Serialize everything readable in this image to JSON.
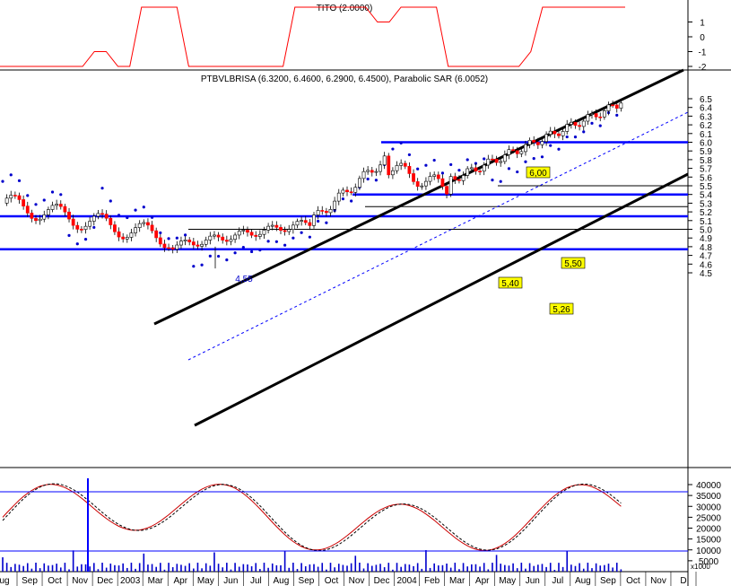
{
  "top_panel": {
    "title": "TITO (2.0000)",
    "ticks": [
      "1",
      "0",
      "-1",
      "-2"
    ],
    "tick_values": [
      1,
      0,
      -1,
      -2
    ],
    "series_color": "#ff0000",
    "values": [
      -2,
      -2,
      -2,
      -2,
      -2,
      -2,
      -2,
      -2,
      -1,
      -1,
      -2,
      -2,
      2,
      2,
      2,
      2,
      -2,
      -2,
      -2,
      -2,
      -2,
      -2,
      -2,
      -2,
      -2,
      2,
      2,
      2,
      2,
      2,
      2,
      2,
      1,
      1,
      2,
      2,
      2,
      2,
      -2,
      -2,
      -2,
      -2,
      -2,
      -2,
      -2,
      -1,
      2,
      2,
      2,
      2,
      2,
      2,
      2,
      2
    ]
  },
  "main_panel": {
    "title": "PTBVLBRISA (6.3200, 6.4600, 6.2900, 6.4500), Parabolic SAR (6.0052)",
    "price_ticks": [
      "6.5",
      "6.4",
      "6.3",
      "6.2",
      "6.1",
      "6.0",
      "5.9",
      "5.8",
      "5.7",
      "5.6",
      "5.5",
      "5.4",
      "5.3",
      "5.2",
      "5.1",
      "5.0",
      "4.9",
      "4.8",
      "4.7",
      "4.6",
      "4.5"
    ],
    "price_tick_values": [
      6.5,
      6.4,
      6.3,
      6.2,
      6.1,
      6.0,
      5.9,
      5.8,
      5.7,
      5.6,
      5.5,
      5.4,
      5.3,
      5.2,
      5.1,
      5.0,
      4.9,
      4.8,
      4.7,
      4.6,
      4.5
    ],
    "annotations": [
      {
        "text": "6,00",
        "value": 6.0
      },
      {
        "text": "5,50",
        "value": 5.5
      },
      {
        "text": "5,40",
        "value": 5.4
      },
      {
        "text": "5,26",
        "value": 5.26
      },
      {
        "text": "4,55",
        "value": 4.55
      }
    ],
    "annotation_bg": "#ffff00",
    "up_color": "#ffffff",
    "down_color": "#ff0000",
    "sar_color": "#0000cc",
    "line_color": "#0000ff",
    "channel_color": "#000000"
  },
  "bottom_panel": {
    "ticks": [
      "40000",
      "35000",
      "30000",
      "25000",
      "20000",
      "15000",
      "10000",
      "5000",
      "0"
    ],
    "tick_values": [
      40000,
      35000,
      30000,
      25000,
      20000,
      15000,
      10000,
      5000,
      0
    ],
    "unit_label": "x1000",
    "volume_color": "#0000cc",
    "osc_color": "#cc0000"
  },
  "x_axis": {
    "labels": [
      "ug",
      "Sep",
      "Oct",
      "Nov",
      "Dec",
      "2003",
      "Mar",
      "Apr",
      "May",
      "Jun",
      "Jul",
      "Aug",
      "Sep",
      "Oct",
      "Nov",
      "Dec",
      "2004",
      "Feb",
      "Mar",
      "Apr",
      "May",
      "Jun",
      "Jul",
      "Aug",
      "Sep",
      "Oct",
      "Nov",
      "D"
    ]
  },
  "chart_data": [
    {
      "type": "line",
      "title": "TITO (2.0000)",
      "ylim": [
        -2,
        2
      ],
      "series": [
        {
          "values": [
            -2,
            -2,
            -2,
            -2,
            -2,
            -1,
            -2,
            2,
            2,
            -2,
            -2,
            -2,
            -2,
            2,
            2,
            2,
            1,
            2,
            2,
            -2,
            -2,
            -2,
            -1,
            2,
            2,
            2
          ]
        }
      ]
    },
    {
      "type": "line",
      "title": "PTBVLBRISA (6.3200, 6.4600, 6.2900, 6.4500), Parabolic SAR (6.0052)",
      "ylim": [
        4.5,
        6.5
      ],
      "last_bar": {
        "open": 6.32,
        "high": 6.46,
        "low": 6.29,
        "close": 6.45
      },
      "parabolic_sar_last": 6.0052,
      "horizontal_levels": [
        6.0,
        5.5,
        5.4,
        5.26,
        5.15,
        5.0,
        4.77
      ],
      "labels": [
        "6,00",
        "5,50",
        "5,40",
        "5,26",
        "4,55"
      ]
    },
    {
      "type": "bar",
      "title": "",
      "ylim": [
        0,
        40000
      ],
      "ylabel": "x1000"
    }
  ]
}
